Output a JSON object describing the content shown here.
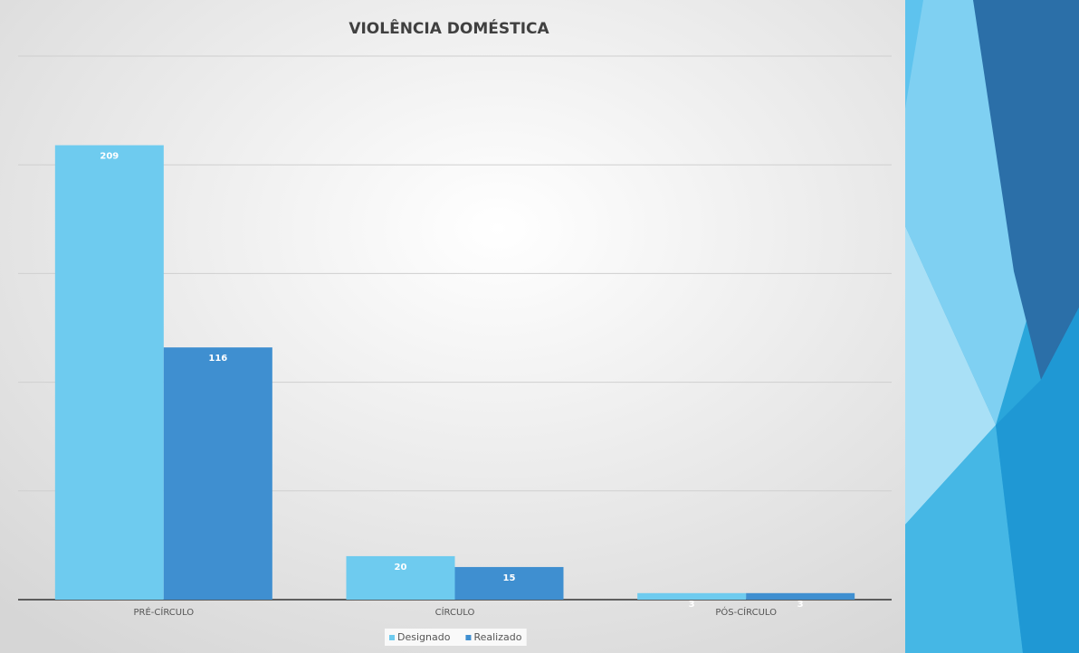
{
  "chart_data": {
    "type": "bar",
    "title": "VIOLÊNCIA DOMÉSTICA",
    "categories": [
      "PRÉ-CÍRCULO",
      "CÍRCULO",
      "PÓS-CÍRCULO"
    ],
    "series": [
      {
        "name": "Designado",
        "color": "#6ecbef",
        "values": [
          209,
          20,
          3
        ]
      },
      {
        "name": "Realizado",
        "color": "#3f8fd0",
        "values": [
          116,
          15,
          3
        ]
      }
    ],
    "ylim": [
      0,
      250
    ],
    "yticks": [
      0,
      50,
      100,
      150,
      200,
      250
    ],
    "grid": true,
    "legend": "bottom"
  }
}
